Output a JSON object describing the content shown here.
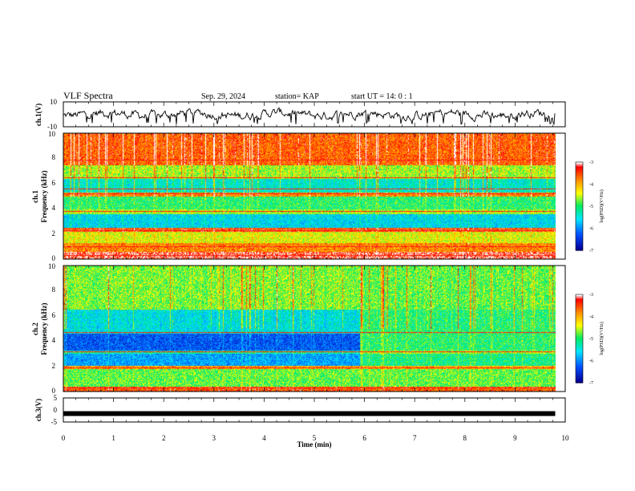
{
  "header": {
    "title": "VLF Spectra",
    "date": "Sep. 29, 2024",
    "station": "station= KAP",
    "start": "start  UT =   14: 0   : 1"
  },
  "colors": {
    "scale": [
      "#0000a8",
      "#0070ff",
      "#00e8ff",
      "#00f070",
      "#ffff00",
      "#ff9000",
      "#ff0000",
      "#ffffff"
    ]
  },
  "chart_data": [
    {
      "type": "line",
      "panel": "ch1-voltage",
      "ylabel": "ch.1(V)",
      "ylim": [
        -10,
        10
      ],
      "yticks": [
        "10",
        "-10"
      ],
      "xlim": [
        0,
        10
      ],
      "x_extent": [
        0,
        9.8
      ],
      "mean": 0,
      "amplitude": 3,
      "spikes": "frequent short negative excursions toward -8"
    },
    {
      "type": "heatmap",
      "panel": "ch1-spectrogram",
      "ylabel": "ch.1\nFrequency (kHz)",
      "ylim": [
        0,
        10
      ],
      "yticks": [
        "0",
        "2",
        "4",
        "6",
        "8",
        "10"
      ],
      "xlim": [
        0,
        10
      ],
      "x_extent": [
        0,
        9.8
      ],
      "colorbar": {
        "label": "log(PSD)(V²/Hz)",
        "range": [
          -7,
          -3
        ],
        "ticks": [
          "-3",
          "-4",
          "-5",
          "-6",
          "-7"
        ]
      },
      "bands": [
        {
          "fmin": 0,
          "fmax": 0.6,
          "level": -3.2
        },
        {
          "fmin": 0.6,
          "fmax": 1.3,
          "level": -3.8
        },
        {
          "fmin": 1.3,
          "fmax": 2.2,
          "level": -4.4
        },
        {
          "fmin": 2.2,
          "fmax": 2.5,
          "level": -3.5
        },
        {
          "fmin": 2.5,
          "fmax": 3.6,
          "level": -5.6
        },
        {
          "fmin": 3.6,
          "fmax": 4.0,
          "level": -4.6
        },
        {
          "fmin": 4.0,
          "fmax": 5.0,
          "level": -5.0
        },
        {
          "fmin": 5.0,
          "fmax": 5.3,
          "level": -3.8
        },
        {
          "fmin": 5.3,
          "fmax": 6.4,
          "level": -5.4
        },
        {
          "fmin": 6.4,
          "fmax": 7.5,
          "level": -4.6
        },
        {
          "fmin": 7.5,
          "fmax": 10,
          "level": -3.6
        }
      ],
      "lines_khz": [
        0.3,
        1.0,
        2.3,
        3.8,
        5.2,
        5.6,
        6.5,
        7.9
      ]
    },
    {
      "type": "heatmap",
      "panel": "ch2-spectrogram",
      "ylabel": "ch.2\nFrequency (kHz)",
      "ylim": [
        0,
        10
      ],
      "yticks": [
        "0",
        "2",
        "4",
        "6",
        "8",
        "10"
      ],
      "xlim": [
        0,
        10
      ],
      "x_extent": [
        0,
        9.8
      ],
      "colorbar": {
        "label": "log(PSD)(V²/Hz)",
        "range": [
          -7,
          -3
        ],
        "ticks": [
          "-3",
          "-4",
          "-5",
          "-6",
          "-7"
        ]
      },
      "change_time_min": 5.9,
      "bands": [
        {
          "fmin": 0,
          "fmax": 0.4,
          "level": -3.5,
          "level_after": -3.6
        },
        {
          "fmin": 0.4,
          "fmax": 1.8,
          "level": -4.8,
          "level_after": -4.8
        },
        {
          "fmin": 1.8,
          "fmax": 2.1,
          "level": -3.9,
          "level_after": -4.0
        },
        {
          "fmin": 2.1,
          "fmax": 3.0,
          "level": -5.9,
          "level_after": -5.1
        },
        {
          "fmin": 3.0,
          "fmax": 3.3,
          "level": -5.2,
          "level_after": -4.6
        },
        {
          "fmin": 3.3,
          "fmax": 4.6,
          "level": -6.3,
          "level_after": -5.0
        },
        {
          "fmin": 4.6,
          "fmax": 6.5,
          "level": -5.5,
          "level_after": -5.0
        },
        {
          "fmin": 6.5,
          "fmax": 10,
          "level": -4.7,
          "level_after": -4.8
        }
      ],
      "lines_khz": [
        0.3,
        1.9,
        3.2,
        4.7
      ]
    },
    {
      "type": "line",
      "panel": "ch3-voltage",
      "ylabel": "ch.3(V)",
      "ylim": [
        -5,
        5
      ],
      "yticks": [
        "5",
        "0",
        "-5"
      ],
      "xlim": [
        0,
        10
      ],
      "x_extent": [
        0,
        9.8
      ],
      "value": -1.5,
      "xlabel": "Time  (min)",
      "xticks": [
        "0",
        "1",
        "2",
        "3",
        "4",
        "5",
        "6",
        "7",
        "8",
        "9",
        "10"
      ]
    }
  ]
}
